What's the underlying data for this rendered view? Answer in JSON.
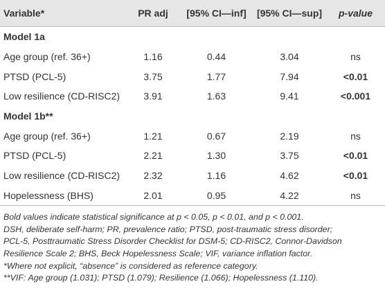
{
  "table": {
    "header": [
      "Variable*",
      "PR adj",
      "[95% CI—inf]",
      "[95% CI—sup]",
      "p-value"
    ],
    "sections": [
      {
        "title": "Model 1a",
        "rows": [
          [
            "Age group (ref. 36+)",
            "1.16",
            "0.44",
            "3.04",
            "ns"
          ],
          [
            "PTSD (PCL-5)",
            "3.75",
            "1.77",
            "7.94",
            "<0.01"
          ],
          [
            "Low resilience (CD-RISC2)",
            "3.91",
            "1.63",
            "9.41",
            "<0.001"
          ]
        ],
        "bold_p": [
          false,
          true,
          true
        ]
      },
      {
        "title": "Model 1b**",
        "rows": [
          [
            "Age group (ref. 36+)",
            "1.21",
            "0.67",
            "2.19",
            "ns"
          ],
          [
            "PTSD (PCL-5)",
            "2.21",
            "1.30",
            "3.75",
            "<0.01"
          ],
          [
            "Low resilience (CD-RISC2)",
            "2.32",
            "1.16",
            "4.62",
            "<0.01"
          ],
          [
            "Hopelessness (BHS)",
            "2.01",
            "0.95",
            "4.22",
            "ns"
          ]
        ],
        "bold_p": [
          false,
          true,
          true,
          false
        ]
      }
    ]
  },
  "footnotes": [
    "Bold values indicate statistical significance at p < 0.05, p < 0.01, and p < 0.001.",
    "DSH, deliberate self-harm; PR, prevalence ratio; PTSD, post-traumatic stress disorder;",
    "PCL-5, Posttraumatic Stress Disorder Checklist for DSM-5; CD-RISC2, Connor-Davidson",
    "Resilience Scale 2; BHS, Beck Hopelessness Scale; VIF, variance inflation factor.",
    "*Where not explicit, “absence” is considered as reference category.",
    "**VIF: Age group (1.031); PTSD (1.079); Resilience (1.066); Hopelessness (1.110)."
  ]
}
